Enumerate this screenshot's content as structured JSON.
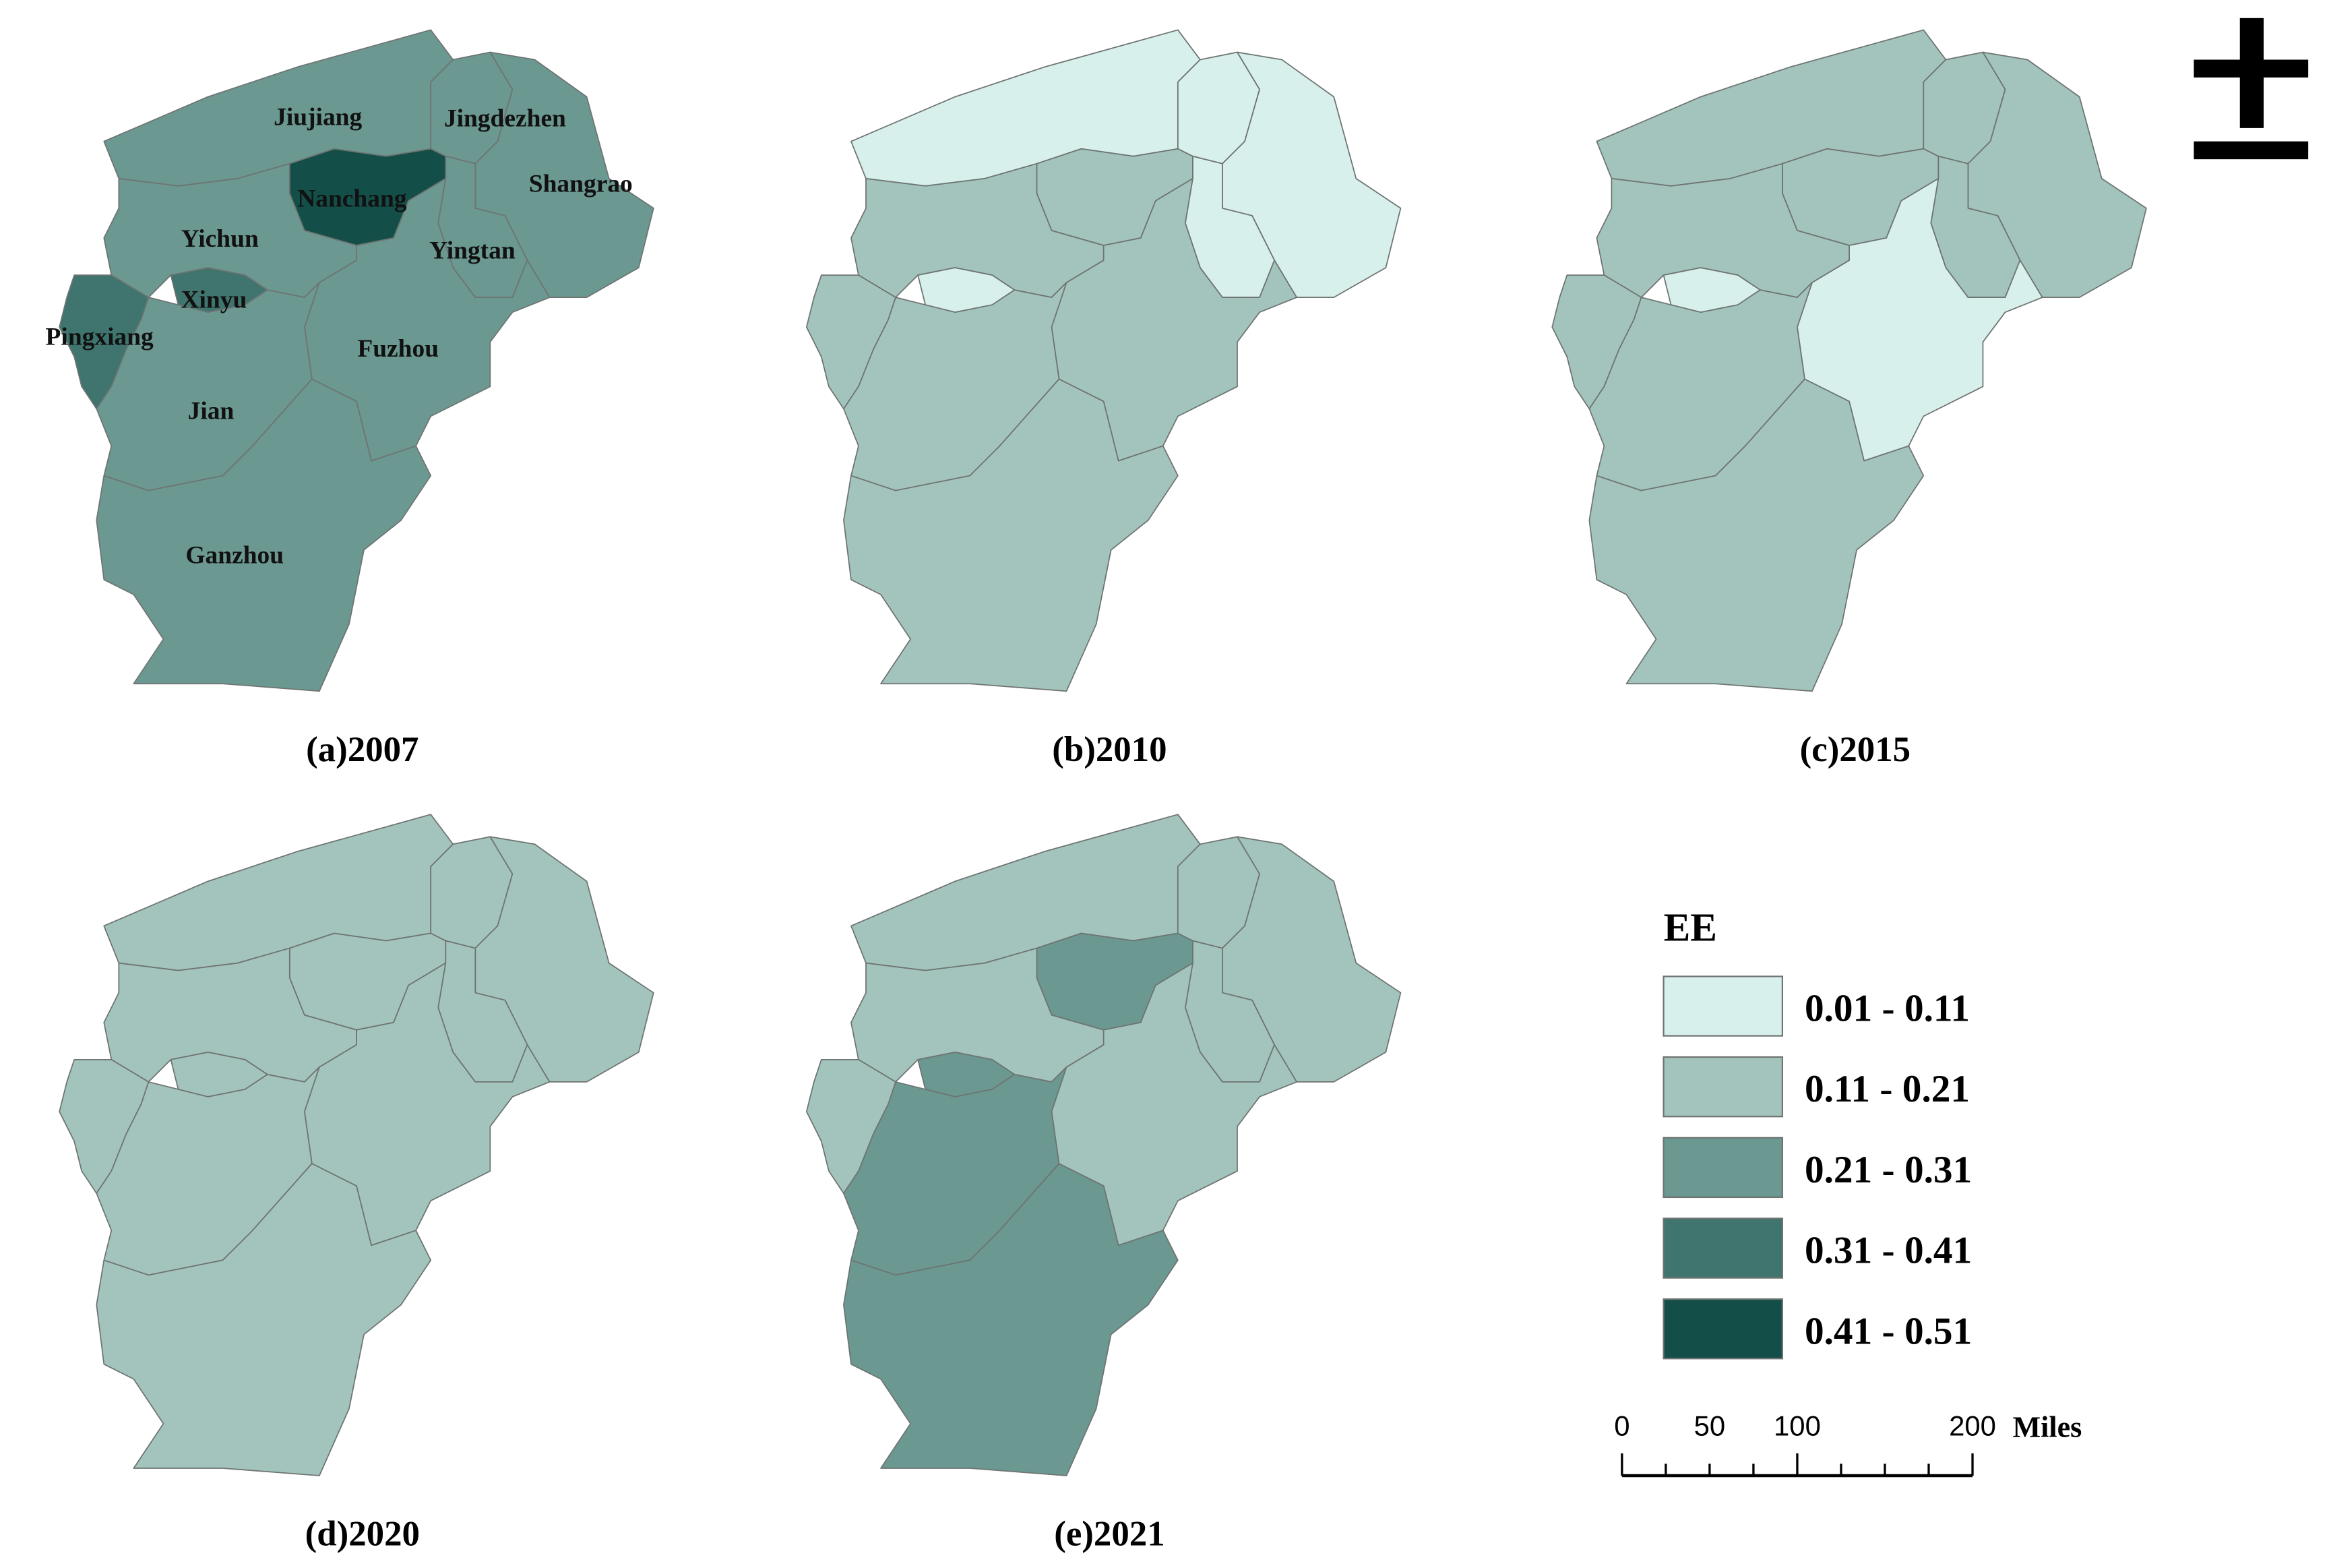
{
  "regions": [
    "Jiujiang",
    "Jingdezhen",
    "Shangrao",
    "Yingtan",
    "Nanchang",
    "Fuzhou",
    "Yichun",
    "Xinyu",
    "Pingxiang",
    "Jian",
    "Ganzhou"
  ],
  "panels": [
    {
      "caption": "(a)2007",
      "fills": [
        "#6b9891",
        "#6b9891",
        "#6b9891",
        "#6b9891",
        "#134e48",
        "#6b9891",
        "#6b9891",
        "#3f756e",
        "#3f756e",
        "#6b9891",
        "#6b9891"
      ]
    },
    {
      "caption": "(b)2010",
      "fills": [
        "#d8f0ec",
        "#d8f0ec",
        "#d8f0ec",
        "#d8f0ec",
        "#a3c4bc",
        "#a3c4bc",
        "#a3c4bc",
        "#d8f0ec",
        "#a3c4bc",
        "#a3c4bc",
        "#a3c4bc"
      ]
    },
    {
      "caption": "(c)2015",
      "fills": [
        "#a3c4bc",
        "#a3c4bc",
        "#a3c4bc",
        "#a3c4bc",
        "#a3c4bc",
        "#d8f0ec",
        "#a3c4bc",
        "#d8f0ec",
        "#a3c4bc",
        "#a3c4bc",
        "#a3c4bc"
      ]
    },
    {
      "caption": "(d)2020",
      "fills": [
        "#a3c4bc",
        "#a3c4bc",
        "#a3c4bc",
        "#a3c4bc",
        "#a3c4bc",
        "#a3c4bc",
        "#a3c4bc",
        "#a3c4bc",
        "#a3c4bc",
        "#a3c4bc",
        "#a3c4bc"
      ]
    },
    {
      "caption": "(e)2021",
      "fills": [
        "#a3c4bc",
        "#a3c4bc",
        "#a3c4bc",
        "#a3c4bc",
        "#6b9891",
        "#a3c4bc",
        "#a3c4bc",
        "#6b9891",
        "#a3c4bc",
        "#6b9891",
        "#6b9891"
      ]
    }
  ],
  "legend": {
    "title": "EE",
    "items": [
      {
        "label": "0.01 - 0.11",
        "color": "#d8f0ec"
      },
      {
        "label": "0.11 - 0.21",
        "color": "#a3c4bc"
      },
      {
        "label": "0.21 - 0.31",
        "color": "#6b9891"
      },
      {
        "label": "0.31 - 0.41",
        "color": "#3f756e"
      },
      {
        "label": "0.41 - 0.51",
        "color": "#134e48"
      }
    ]
  },
  "scale_bar": {
    "labels": [
      0,
      50,
      100,
      200
    ],
    "unit": "Miles"
  }
}
